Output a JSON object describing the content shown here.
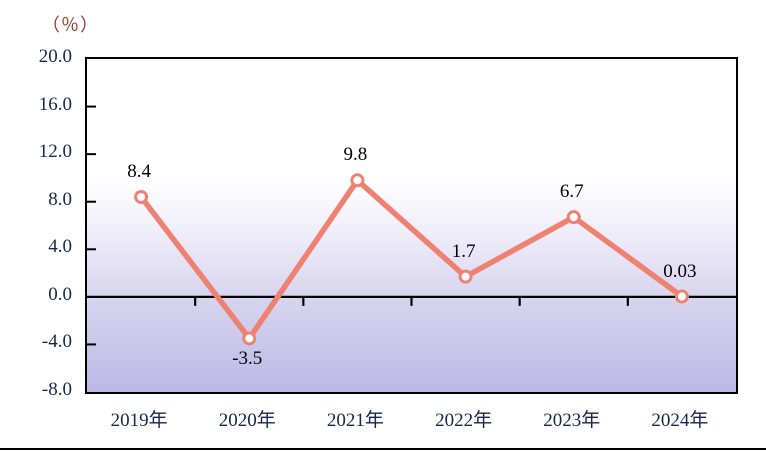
{
  "unit_label": "（％）",
  "colors": {
    "line": "#ef8172",
    "marker_fill": "#ffffff",
    "axis": "#000000",
    "axis_tick_label": "#17264d",
    "data_label": "#000000",
    "unit_label": "#8a4038",
    "plot_bg_top": "#ffffff",
    "plot_bg_bottom": "#bcb9e6"
  },
  "chart_data": {
    "type": "line",
    "title": "",
    "xlabel": "",
    "ylabel": "（％）",
    "categories": [
      "2019年",
      "2020年",
      "2021年",
      "2022年",
      "2023年",
      "2024年"
    ],
    "values": [
      8.4,
      -3.5,
      9.8,
      1.7,
      6.7,
      0.03
    ],
    "point_labels": [
      "8.4",
      "-3.5",
      "9.8",
      "1.7",
      "6.7",
      "0.03"
    ],
    "point_label_positions": [
      "above",
      "below",
      "above",
      "above",
      "above",
      "above"
    ],
    "ylim": [
      -8.0,
      20.0
    ],
    "y_tick_step": 4.0,
    "y_ticks": [
      "20.0",
      "16.0",
      "12.0",
      "8.0",
      "4.0",
      "0.0",
      "-4.0",
      "-8.0"
    ],
    "grid": false,
    "legend": "none",
    "zero_baseline": true,
    "marker": "circle-open"
  }
}
